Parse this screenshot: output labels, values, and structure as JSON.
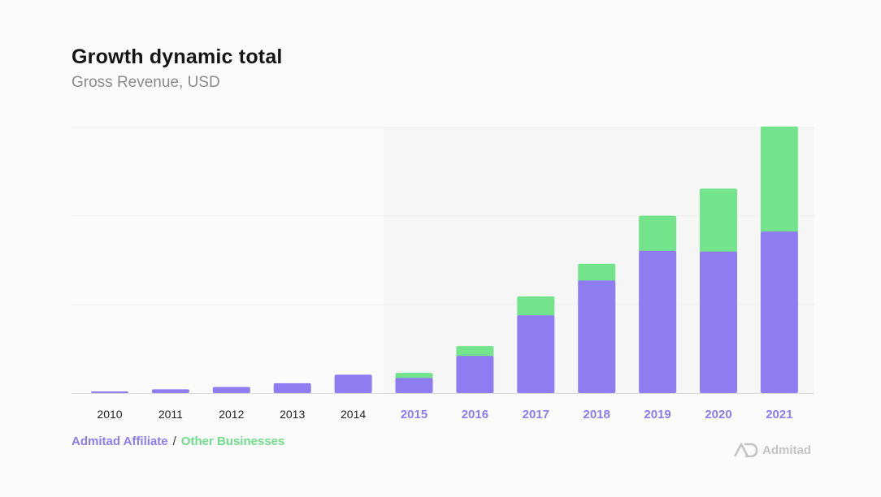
{
  "header": {
    "title": "Growth dynamic total",
    "subtitle": "Gross Revenue, USD"
  },
  "legend": {
    "affiliate": "Admitad Affiliate",
    "separator": "/",
    "other": "Other Businesses"
  },
  "brand": {
    "name": "Admitad"
  },
  "colors": {
    "affiliate": "#8e7cf0",
    "other": "#74e48c",
    "axis_label_dark": "#1f1f1f",
    "axis_label_accent": "#8c7cf0",
    "baseline": "#d8d8d8",
    "gridline": "#eeeeee",
    "highlight_band": "#f6f6f6"
  },
  "chart_data": {
    "type": "bar",
    "stacked": true,
    "categories": [
      "2010",
      "2011",
      "2012",
      "2013",
      "2014",
      "2015",
      "2016",
      "2017",
      "2018",
      "2019",
      "2020",
      "2021"
    ],
    "highlighted_from": "2015",
    "series": [
      {
        "name": "Admitad Affiliate",
        "values": [
          0.6,
          1.4,
          2.3,
          3.7,
          6.9,
          5.7,
          14.0,
          29.3,
          42.4,
          53.6,
          53.3,
          60.8
        ]
      },
      {
        "name": "Other Businesses",
        "values": [
          0,
          0,
          0,
          0,
          0,
          1.9,
          3.7,
          7.1,
          6.3,
          13.2,
          23.7,
          39.6
        ]
      }
    ],
    "ylim": [
      0,
      100
    ],
    "y_ticks_shown": false,
    "grid": true
  }
}
